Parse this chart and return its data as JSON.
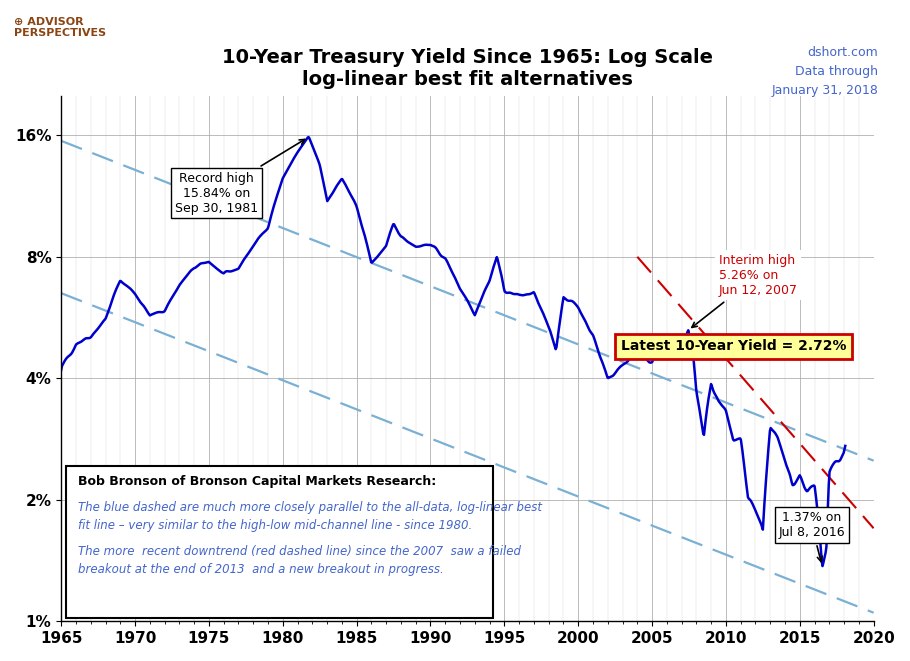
{
  "title_line1": "10-Year Treasury Yield Since 1965: Log Scale",
  "title_line2": "log-linear best fit alternatives",
  "dshort_text": "dshort.com\nData through\nJanuary 31, 2018",
  "latest_yield_label": "Latest 10-Year Yield = 2.72%",
  "record_high_label": "Record high\n15.84% on\nSep 30, 1981",
  "interim_high_label": "Interim high\n5.26% on\nJun 12, 2007",
  "low_label": "1.37% on\nJul 8, 2016",
  "annotation_bold": "Bob Bronson of Bronson Capital Markets Research:",
  "annotation_italic1": "The blue dashed are much more closely parallel to the all-data, log-linear best\nfit line – very similar to the high-low mid-channel line - since 1980.",
  "annotation_italic2": "The more  recent downtrend (red dashed line) since the 2007  saw a failed\nbreakout at the end of 2013  and a new breakout in progress.",
  "background_color": "#ffffff",
  "plot_bg_color": "#ffffff",
  "line_color": "#0000cc",
  "grid_color": "#aaaaaa",
  "title_color": "#000000",
  "dshort_color": "#4466cc",
  "yield_box_color": "#ffff99",
  "yield_box_border": "#cc0000",
  "blue_dashed_color": "#7ab0d4",
  "red_dashed_color": "#cc0000",
  "key_years": [
    1965.0,
    1966.0,
    1967.0,
    1968.0,
    1969.0,
    1970.0,
    1971.0,
    1972.0,
    1973.0,
    1974.0,
    1975.0,
    1976.0,
    1977.0,
    1978.0,
    1979.0,
    1979.5,
    1980.0,
    1981.0,
    1981.75,
    1982.5,
    1983.0,
    1984.0,
    1985.0,
    1986.0,
    1987.0,
    1987.5,
    1988.0,
    1989.0,
    1990.0,
    1991.0,
    1992.0,
    1993.0,
    1994.0,
    1994.5,
    1995.0,
    1996.0,
    1997.0,
    1998.0,
    1998.5,
    1999.0,
    2000.0,
    2001.0,
    2001.5,
    2002.0,
    2003.0,
    2004.0,
    2005.0,
    2006.0,
    2007.0,
    2007.45,
    2007.8,
    2008.0,
    2008.5,
    2009.0,
    2009.5,
    2010.0,
    2010.5,
    2011.0,
    2011.5,
    2012.0,
    2012.5,
    2013.0,
    2013.5,
    2014.0,
    2014.5,
    2015.0,
    2015.5,
    2016.0,
    2016.52,
    2016.8,
    2017.0,
    2017.5,
    2018.0,
    2018.08
  ],
  "key_yields": [
    4.2,
    4.9,
    5.1,
    5.6,
    7.0,
    6.5,
    5.7,
    5.9,
    6.8,
    7.5,
    7.8,
    7.2,
    7.5,
    8.5,
    9.5,
    11.0,
    12.5,
    14.5,
    15.84,
    13.5,
    11.0,
    12.5,
    10.6,
    7.7,
    8.5,
    9.6,
    9.0,
    8.5,
    8.6,
    7.9,
    6.7,
    5.8,
    7.0,
    8.0,
    6.6,
    6.4,
    6.5,
    5.3,
    4.7,
    6.4,
    6.0,
    5.1,
    4.5,
    4.0,
    4.3,
    4.7,
    4.4,
    4.9,
    4.7,
    5.26,
    4.5,
    3.7,
    2.8,
    3.9,
    3.5,
    3.3,
    2.8,
    2.8,
    2.0,
    1.8,
    1.6,
    3.0,
    2.8,
    2.5,
    2.2,
    2.3,
    2.1,
    2.1,
    1.37,
    1.6,
    2.4,
    2.5,
    2.6,
    2.72
  ]
}
